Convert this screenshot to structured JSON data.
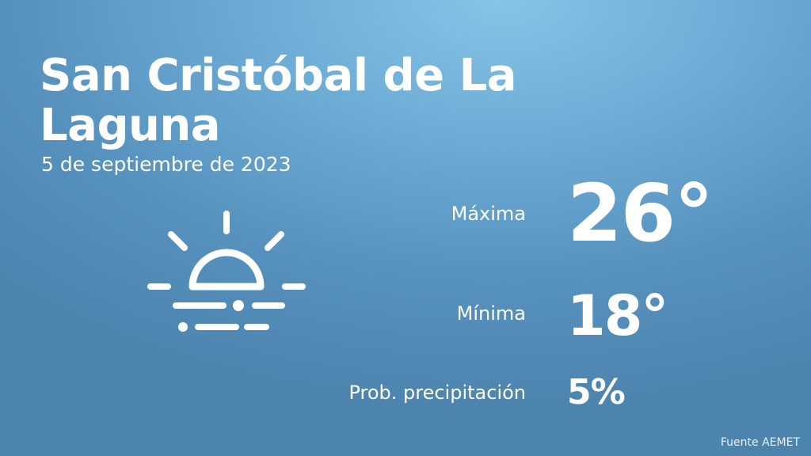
{
  "location": {
    "city": "San Cristóbal de La Laguna",
    "date": "5 de septiembre de 2023"
  },
  "forecast": {
    "icon": "sun-behind-fog-icon",
    "max_label": "Máxima",
    "max_value": "26°",
    "min_label": "Mínima",
    "min_value": "18°",
    "prob_label": "Prob. precipitación",
    "prob_value": "5%"
  },
  "footer": {
    "source": "Fuente AEMET"
  },
  "colors": {
    "background_top": "#86c4e6",
    "background_bottom": "#4d84ae",
    "text": "#ffffff"
  }
}
